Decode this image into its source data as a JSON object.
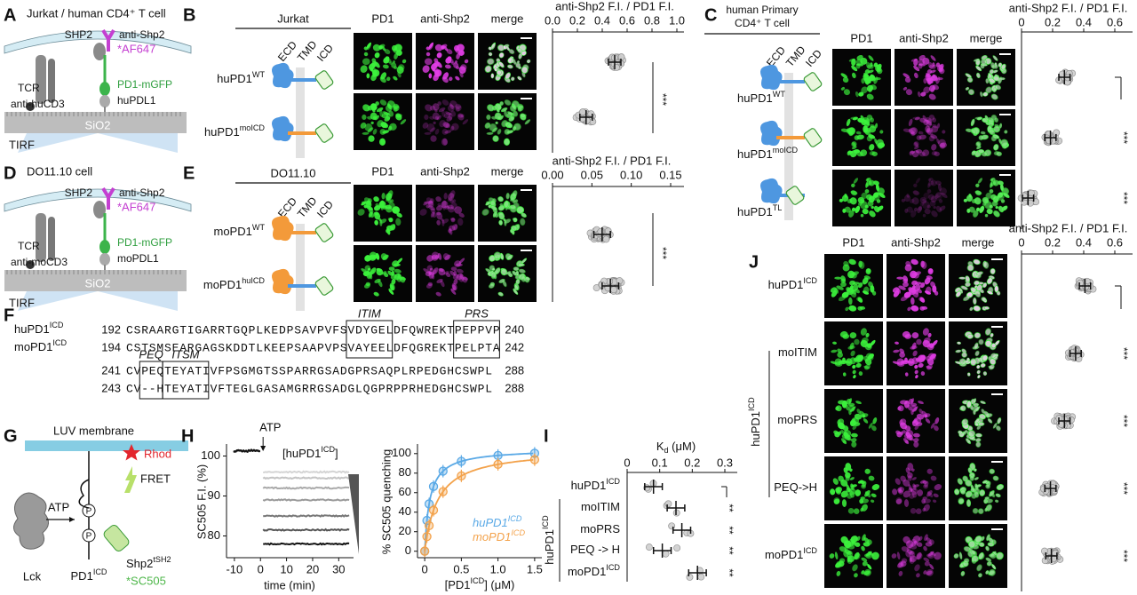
{
  "A": {
    "letter": "A",
    "title": "Jurkat / human CD4⁺ T cell",
    "shp2": "SHP2",
    "antibody": "anti-Shp2",
    "dye": "*AF647",
    "tcr": "TCR",
    "pd1": "PD1-mGFP",
    "anti_cd3": "anti-huCD3",
    "pdl1": "huPDL1",
    "substrate": "SiO2",
    "tirf": "TIRF"
  },
  "B": {
    "letter": "B",
    "cell": "Jurkat",
    "domains": [
      "ECD",
      "TMD",
      "ICD"
    ],
    "channels": [
      "PD1",
      "anti-Shp2",
      "merge"
    ],
    "rows": [
      {
        "text": "huPD1",
        "sup": "WT"
      },
      {
        "text": "huPD1",
        "sup": "moICD"
      }
    ],
    "axis_title": "anti-Shp2 F.I. / PD1 F.I.",
    "ticks": [
      "0.0",
      "0.2",
      "0.4",
      "0.6",
      "0.8",
      "1.0"
    ],
    "significance": [
      "***"
    ]
  },
  "C": {
    "letter": "C",
    "cell": [
      "human Primary",
      "CD4⁺ T cell"
    ],
    "domains": [
      "ECD",
      "TMD",
      "ICD"
    ],
    "channels": [
      "PD1",
      "anti-Shp2",
      "merge"
    ],
    "rows": [
      {
        "text": "huPD1",
        "sup": "WT"
      },
      {
        "text": "huPD1",
        "sup": "moICD"
      },
      {
        "text": "huPD1",
        "sup": "TL"
      }
    ],
    "axis_title": "anti-Shp2 F.I. / PD1 F.I.",
    "ticks": [
      "0",
      "0.2",
      "0.4",
      "0.6"
    ],
    "significance": [
      "***",
      "***"
    ]
  },
  "D": {
    "letter": "D",
    "title": "DO11.10 cell",
    "shp2": "SHP2",
    "antibody": "anti-Shp2",
    "dye": "*AF647",
    "tcr": "TCR",
    "pd1": "PD1-mGFP",
    "anti_cd3": "anti-moCD3",
    "pdl1": "moPDL1",
    "substrate": "SiO2",
    "tirf": "TIRF"
  },
  "E": {
    "letter": "E",
    "cell": "DO11.10",
    "domains": [
      "ECD",
      "TMD",
      "ICD"
    ],
    "channels": [
      "PD1",
      "anti-Shp2",
      "merge"
    ],
    "rows": [
      {
        "text": "moPD1",
        "sup": "WT"
      },
      {
        "text": "moPD1",
        "sup": "huICD"
      }
    ],
    "axis_title": "anti-Shp2 F.I. / PD1 F.I.",
    "ticks": [
      "0.00",
      "0.05",
      "0.10",
      "0.15"
    ],
    "significance": [
      "***"
    ]
  },
  "F": {
    "letter": "F",
    "blocks": [
      {
        "motifs": [
          "ITIM",
          "PRS"
        ],
        "rows": [
          {
            "name": {
              "text": "huPD1",
              "sup": "ICD"
            },
            "start": "192",
            "seq": "CSRAARGTIGARRTGQPLKEDPSAVPVFSVDYGELDFQWREKTPEPPVP",
            "end": "240"
          },
          {
            "name": {
              "text": "moPD1",
              "sup": "ICD"
            },
            "start": "194",
            "seq": "CSTSMSEARGAGSKDDTLKEEPSAAPVPSVAYEELDFQGREKTPELPTA",
            "end": "242"
          }
        ]
      },
      {
        "motifs": [
          "PEQ",
          "ITSM"
        ],
        "rows": [
          {
            "start": "241",
            "seq": "CVPEQTEYATIVFPSGMGTSSPARRGSADGPRSAQPLRPEDGHCSWPL",
            "end": "288"
          },
          {
            "start": "243",
            "seq": "CV--HTEYATIVFTEGLGASAMGRRGSADGLQGPRPPRHEDGHCSWPL",
            "end": "288"
          }
        ]
      }
    ]
  },
  "G": {
    "letter": "G",
    "membrane": "LUV membrane",
    "rhod": "Rhod",
    "fret": "FRET",
    "atp": "ATP",
    "lck": "Lck",
    "pd1": {
      "text": "PD1",
      "sup": "ICD"
    },
    "phospho": "P",
    "shp2": {
      "text": "Shp2",
      "sup": "tSH2"
    },
    "dye": "*SC505"
  },
  "H": {
    "letter": "H",
    "kinetics": {
      "ylabel": "SC505 F.I. (%)",
      "xlabel": "time (min)",
      "yticks": [
        "80",
        "90",
        "100"
      ],
      "xticks": [
        "-10",
        "0",
        "10",
        "20",
        "30"
      ],
      "event": "ATP",
      "titration": {
        "text": "[huPD1",
        "sup": "ICD",
        "post": "]"
      }
    },
    "binding": {
      "ylabel": "% SC505 quenching",
      "xlabel": {
        "text": "[PD1",
        "sup": "ICD",
        "post": "] (μM)"
      },
      "yticks": [
        "0",
        "20",
        "40",
        "60",
        "80",
        "100"
      ],
      "xticks": [
        "0",
        "0.5",
        "1.0",
        "1.5"
      ],
      "legend": [
        {
          "text": "huPD1",
          "sup": "ICD",
          "color": "#5aa9e6"
        },
        {
          "text": "moPD1",
          "sup": "ICD",
          "color": "#f3a24b"
        }
      ]
    }
  },
  "I": {
    "letter": "I",
    "axis_title": {
      "text": "K",
      "sub": "d",
      "post": " (μM)"
    },
    "ticks": [
      "0",
      "0.1",
      "0.2",
      "0.3"
    ],
    "rows": [
      {
        "text": "huPD1",
        "sup": "ICD"
      },
      {
        "text": "moITIM"
      },
      {
        "text": "moPRS"
      },
      {
        "text": "PEQ -> H"
      },
      {
        "text": "moPD1",
        "sup": "ICD"
      }
    ],
    "group": {
      "text": "huPD1",
      "sup": "ICD"
    },
    "significance": [
      "**",
      "**",
      "**",
      "**"
    ]
  },
  "J": {
    "letter": "J",
    "channels": [
      "PD1",
      "anti-Shp2",
      "merge"
    ],
    "axis_title": "anti-Shp2 F.I. / PD1 F.I.",
    "ticks": [
      "0",
      "0.2",
      "0.4",
      "0.6"
    ],
    "rows": [
      {
        "text": "huPD1",
        "sup": "ICD"
      },
      {
        "text": "moITIM"
      },
      {
        "text": "moPRS"
      },
      {
        "text": "PEQ->H"
      },
      {
        "text": "moPD1",
        "sup": "ICD"
      }
    ],
    "group": {
      "text": "huPD1",
      "sup": "ICD"
    },
    "significance": [
      "***",
      "***",
      "***",
      "***"
    ]
  }
}
